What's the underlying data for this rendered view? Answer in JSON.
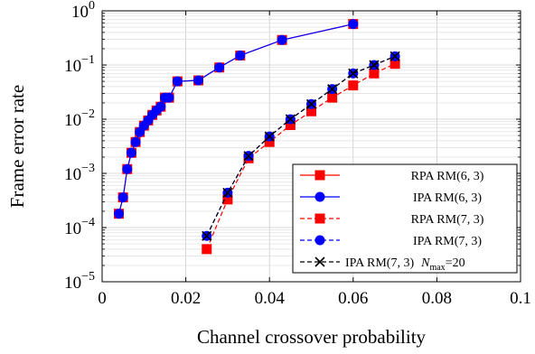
{
  "chart_data": {
    "type": "line",
    "title": "",
    "xlabel": "Channel crossover probability",
    "ylabel": "Frame error rate",
    "xlim": [
      0,
      0.1
    ],
    "ylim": [
      1e-05,
      1
    ],
    "yscale": "log",
    "grid": true,
    "legend_position": "bottom-right",
    "x_ticks": [
      {
        "value": 0,
        "label": "0"
      },
      {
        "value": 0.02,
        "label": "0.02"
      },
      {
        "value": 0.04,
        "label": "0.04"
      },
      {
        "value": 0.06,
        "label": "0.06"
      },
      {
        "value": 0.08,
        "label": "0.08"
      },
      {
        "value": 0.1,
        "label": "0.1"
      }
    ],
    "y_ticks": [
      {
        "value": 1e-05,
        "base": "10",
        "exp": "−5"
      },
      {
        "value": 0.0001,
        "base": "10",
        "exp": "−4"
      },
      {
        "value": 0.001,
        "base": "10",
        "exp": "−3"
      },
      {
        "value": 0.01,
        "base": "10",
        "exp": "−2"
      },
      {
        "value": 0.1,
        "base": "10",
        "exp": "−1"
      },
      {
        "value": 1,
        "base": "10",
        "exp": "0"
      }
    ],
    "series": [
      {
        "name": "RPA RM(6, 3)",
        "color": "#ff0000",
        "marker": "square",
        "dash": "solid",
        "x": [
          0.004,
          0.005,
          0.006,
          0.007,
          0.008,
          0.009,
          0.01,
          0.011,
          0.012,
          0.013,
          0.014,
          0.015,
          0.016,
          0.018,
          0.023,
          0.028,
          0.033,
          0.043,
          0.06
        ],
        "y": [
          0.00018,
          0.00036,
          0.0012,
          0.0024,
          0.0038,
          0.0058,
          0.0076,
          0.0095,
          0.012,
          0.0145,
          0.017,
          0.025,
          0.025,
          0.05,
          0.052,
          0.09,
          0.15,
          0.29,
          0.57
        ]
      },
      {
        "name": "IPA RM(6, 3)",
        "color": "#0000ff",
        "marker": "circle",
        "dash": "solid",
        "x": [
          0.004,
          0.005,
          0.006,
          0.007,
          0.008,
          0.009,
          0.01,
          0.011,
          0.012,
          0.013,
          0.014,
          0.015,
          0.016,
          0.018,
          0.023,
          0.028,
          0.033,
          0.043,
          0.06
        ],
        "y": [
          0.00018,
          0.00036,
          0.0012,
          0.0024,
          0.0038,
          0.0058,
          0.0076,
          0.0095,
          0.012,
          0.0145,
          0.017,
          0.025,
          0.025,
          0.05,
          0.052,
          0.09,
          0.15,
          0.29,
          0.57
        ]
      },
      {
        "name": "RPA RM(7, 3)",
        "color": "#ff0000",
        "marker": "square",
        "dash": "dashed",
        "x": [
          0.025,
          0.03,
          0.035,
          0.04,
          0.045,
          0.05,
          0.055,
          0.06,
          0.065,
          0.07
        ],
        "y": [
          4e-05,
          0.00033,
          0.0019,
          0.0038,
          0.0078,
          0.014,
          0.025,
          0.042,
          0.07,
          0.105
        ]
      },
      {
        "name": "IPA RM(7, 3)",
        "color": "#0000ff",
        "marker": "circle",
        "dash": "dashed",
        "x": [
          0.025,
          0.03,
          0.035,
          0.04,
          0.045,
          0.05,
          0.055,
          0.06,
          0.065,
          0.07
        ],
        "y": [
          7e-05,
          0.00044,
          0.0021,
          0.0048,
          0.01,
          0.019,
          0.036,
          0.07,
          0.1,
          0.145
        ]
      },
      {
        "name": "IPA RM(7, 3)  N_max=20",
        "color": "#000000",
        "marker": "cross",
        "dash": "dashed",
        "x": [
          0.025,
          0.03,
          0.035,
          0.04,
          0.045,
          0.05,
          0.055,
          0.06,
          0.065,
          0.07
        ],
        "y": [
          7e-05,
          0.00044,
          0.0021,
          0.0048,
          0.01,
          0.019,
          0.036,
          0.07,
          0.1,
          0.145
        ]
      }
    ],
    "legend": [
      {
        "prefix": "RPA RM",
        "args": "(6, 3)"
      },
      {
        "prefix": "IPA RM",
        "args": "(6, 3)"
      },
      {
        "prefix": "RPA RM",
        "args": "(7, 3)"
      },
      {
        "prefix": "IPA RM",
        "args": "(7, 3)"
      },
      {
        "prefix": "IPA RM",
        "args": "(7, 3)",
        "n_symbol": "N",
        "n_sub": "max",
        "n_value": "=20"
      }
    ]
  }
}
